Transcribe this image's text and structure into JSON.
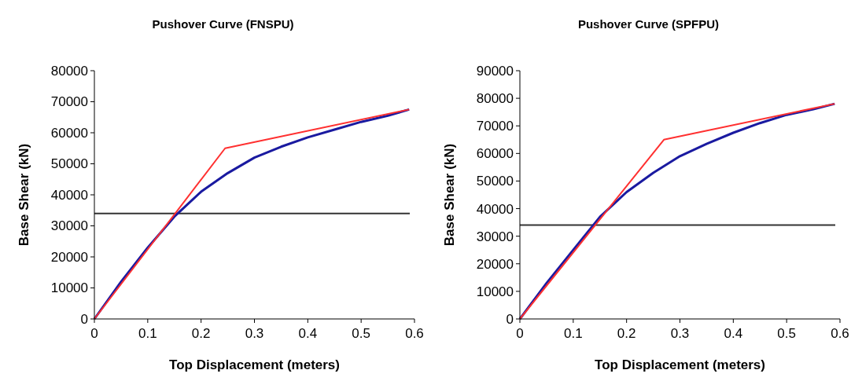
{
  "chart_data": [
    {
      "type": "line",
      "title": "Pushover Curve (FNSPU)",
      "xlabel": "Top Displacement (meters)",
      "ylabel": "Base Shear (kN)",
      "xlim": [
        0,
        0.6
      ],
      "xticks": [
        0,
        0.1,
        0.2,
        0.3,
        0.4,
        0.5,
        0.6
      ],
      "ylim": [
        0,
        80000
      ],
      "yticks": [
        0,
        10000,
        20000,
        30000,
        40000,
        50000,
        60000,
        70000,
        80000
      ],
      "grid": false,
      "series": [
        {
          "color": "#1a1aa0",
          "x": [
            0,
            0.05,
            0.1,
            0.15,
            0.2,
            0.25,
            0.3,
            0.35,
            0.4,
            0.45,
            0.5,
            0.55,
            0.59
          ],
          "values": [
            0,
            12000,
            23000,
            33000,
            41000,
            47000,
            52000,
            55500,
            58500,
            61000,
            63500,
            65500,
            67500
          ]
        },
        {
          "color": "#ff3030",
          "x": [
            0,
            0.245,
            0.59
          ],
          "values": [
            0,
            55000,
            67500
          ]
        }
      ],
      "ref_lines": [
        {
          "axis": "y",
          "value": 34000,
          "color": "#333333"
        }
      ]
    },
    {
      "type": "line",
      "title": "Pushover Curve (SPFPU)",
      "xlabel": "Top Displacement (meters)",
      "ylabel": "Base Shear (kN)",
      "xlim": [
        0,
        0.6
      ],
      "xticks": [
        0,
        0.1,
        0.2,
        0.3,
        0.4,
        0.5,
        0.6
      ],
      "ylim": [
        0,
        90000
      ],
      "yticks": [
        0,
        10000,
        20000,
        30000,
        40000,
        50000,
        60000,
        70000,
        80000,
        90000
      ],
      "grid": false,
      "series": [
        {
          "color": "#1a1aa0",
          "x": [
            0,
            0.05,
            0.1,
            0.15,
            0.2,
            0.25,
            0.3,
            0.35,
            0.4,
            0.45,
            0.5,
            0.55,
            0.59
          ],
          "values": [
            0,
            13000,
            25000,
            37000,
            46000,
            53000,
            59000,
            63500,
            67500,
            71000,
            74000,
            76000,
            78000
          ]
        },
        {
          "color": "#ff3030",
          "x": [
            0,
            0.27,
            0.59
          ],
          "values": [
            0,
            65000,
            78000
          ]
        }
      ],
      "ref_lines": [
        {
          "axis": "y",
          "value": 34000,
          "color": "#333333"
        }
      ]
    }
  ]
}
